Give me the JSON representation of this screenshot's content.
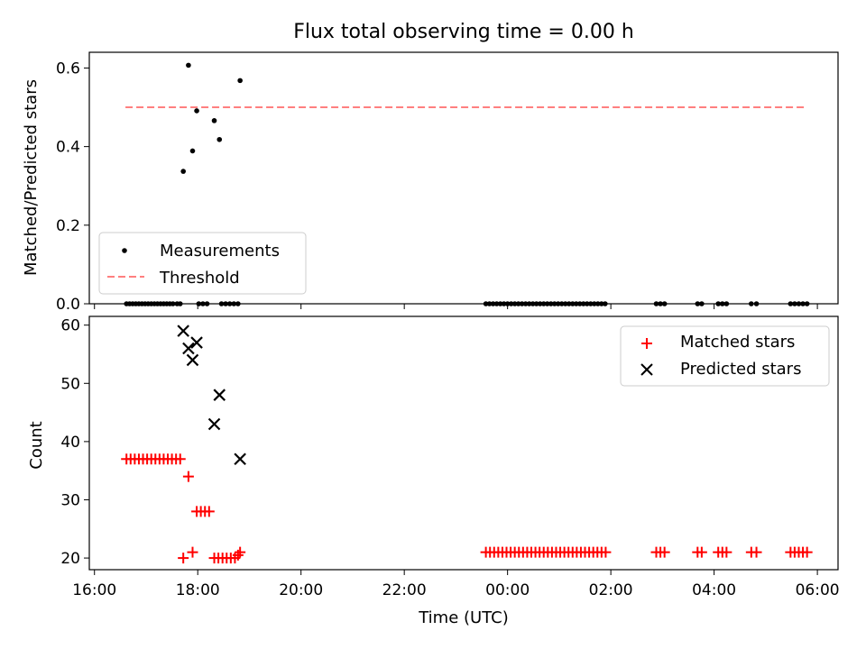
{
  "figure_title": "Flux total observing time = 0.00 h",
  "chart_data": [
    {
      "type": "scatter",
      "ylabel": "Matched/Predicted stars",
      "xlabel": "",
      "x_axis": "time (hours; values > 24 are after midnight UTC)",
      "xlim": [
        15.9,
        30.4
      ],
      "ylim": [
        0.0,
        0.64
      ],
      "yticks": [
        0.0,
        0.2,
        0.4,
        0.6
      ],
      "ytick_labels": [
        "0.0",
        "0.2",
        "0.4",
        "0.6"
      ],
      "grid": false,
      "legend_position": "lower-left",
      "series": [
        {
          "name": "Measurements",
          "marker": "dot",
          "color": "#000000",
          "points": [
            [
              17.72,
              0.337
            ],
            [
              17.82,
              0.607
            ],
            [
              17.9,
              0.389
            ],
            [
              17.98,
              0.491
            ],
            [
              18.32,
              0.466
            ],
            [
              18.42,
              0.418
            ],
            [
              18.82,
              0.568
            ],
            [
              16.62,
              0.0
            ],
            [
              16.68,
              0.0
            ],
            [
              16.74,
              0.0
            ],
            [
              16.8,
              0.0
            ],
            [
              16.86,
              0.0
            ],
            [
              16.92,
              0.0
            ],
            [
              16.98,
              0.0
            ],
            [
              17.04,
              0.0
            ],
            [
              17.1,
              0.0
            ],
            [
              17.16,
              0.0
            ],
            [
              17.22,
              0.0
            ],
            [
              17.28,
              0.0
            ],
            [
              17.34,
              0.0
            ],
            [
              17.4,
              0.0
            ],
            [
              17.46,
              0.0
            ],
            [
              17.52,
              0.0
            ],
            [
              17.6,
              0.0
            ],
            [
              17.66,
              0.0
            ],
            [
              18.02,
              0.0
            ],
            [
              18.1,
              0.0
            ],
            [
              18.18,
              0.0
            ],
            [
              18.46,
              0.0
            ],
            [
              18.54,
              0.0
            ],
            [
              18.62,
              0.0
            ],
            [
              18.7,
              0.0
            ],
            [
              18.78,
              0.0
            ],
            [
              23.58,
              0.0
            ],
            [
              23.65,
              0.0
            ],
            [
              23.72,
              0.0
            ],
            [
              23.79,
              0.0
            ],
            [
              23.86,
              0.0
            ],
            [
              23.93,
              0.0
            ],
            [
              24.0,
              0.0
            ],
            [
              24.07,
              0.0
            ],
            [
              24.14,
              0.0
            ],
            [
              24.21,
              0.0
            ],
            [
              24.28,
              0.0
            ],
            [
              24.35,
              0.0
            ],
            [
              24.42,
              0.0
            ],
            [
              24.49,
              0.0
            ],
            [
              24.56,
              0.0
            ],
            [
              24.63,
              0.0
            ],
            [
              24.7,
              0.0
            ],
            [
              24.77,
              0.0
            ],
            [
              24.84,
              0.0
            ],
            [
              24.91,
              0.0
            ],
            [
              24.98,
              0.0
            ],
            [
              25.05,
              0.0
            ],
            [
              25.12,
              0.0
            ],
            [
              25.19,
              0.0
            ],
            [
              25.26,
              0.0
            ],
            [
              25.33,
              0.0
            ],
            [
              25.4,
              0.0
            ],
            [
              25.47,
              0.0
            ],
            [
              25.54,
              0.0
            ],
            [
              25.61,
              0.0
            ],
            [
              25.68,
              0.0
            ],
            [
              25.75,
              0.0
            ],
            [
              25.82,
              0.0
            ],
            [
              25.89,
              0.0
            ],
            [
              26.88,
              0.0
            ],
            [
              26.96,
              0.0
            ],
            [
              27.04,
              0.0
            ],
            [
              27.68,
              0.0
            ],
            [
              27.76,
              0.0
            ],
            [
              28.08,
              0.0
            ],
            [
              28.16,
              0.0
            ],
            [
              28.24,
              0.0
            ],
            [
              28.72,
              0.0
            ],
            [
              28.82,
              0.0
            ],
            [
              29.48,
              0.0
            ],
            [
              29.56,
              0.0
            ],
            [
              29.64,
              0.0
            ],
            [
              29.72,
              0.0
            ],
            [
              29.8,
              0.0
            ]
          ]
        },
        {
          "name": "Threshold",
          "marker": "dashed-line",
          "color": "#ff7f7f",
          "points": [
            [
              16.6,
              0.5
            ],
            [
              29.8,
              0.5
            ]
          ]
        }
      ]
    },
    {
      "type": "scatter",
      "ylabel": "Count",
      "xlabel": "Time (UTC)",
      "xlim": [
        15.9,
        30.4
      ],
      "ylim": [
        18.0,
        61.5
      ],
      "yticks": [
        20,
        30,
        40,
        50,
        60
      ],
      "ytick_labels": [
        "20",
        "30",
        "40",
        "50",
        "60"
      ],
      "xticks": [
        16,
        18,
        20,
        22,
        24,
        26,
        28,
        30
      ],
      "xtick_labels": [
        "16:00",
        "18:00",
        "20:00",
        "22:00",
        "00:00",
        "02:00",
        "04:00",
        "06:00"
      ],
      "grid": false,
      "legend_position": "upper-right",
      "series": [
        {
          "name": "Matched stars",
          "marker": "plus",
          "color": "#ff0000",
          "points": [
            [
              16.62,
              37
            ],
            [
              16.7,
              37
            ],
            [
              16.78,
              37
            ],
            [
              16.86,
              37
            ],
            [
              16.94,
              37
            ],
            [
              17.02,
              37
            ],
            [
              17.1,
              37
            ],
            [
              17.18,
              37
            ],
            [
              17.26,
              37
            ],
            [
              17.34,
              37
            ],
            [
              17.42,
              37
            ],
            [
              17.5,
              37
            ],
            [
              17.58,
              37
            ],
            [
              17.66,
              37
            ],
            [
              17.72,
              20
            ],
            [
              17.82,
              34
            ],
            [
              17.9,
              21
            ],
            [
              17.98,
              28
            ],
            [
              18.06,
              28
            ],
            [
              18.14,
              28
            ],
            [
              18.22,
              28
            ],
            [
              18.32,
              20
            ],
            [
              18.4,
              20
            ],
            [
              18.48,
              20
            ],
            [
              18.56,
              20
            ],
            [
              18.64,
              20
            ],
            [
              18.72,
              20
            ],
            [
              18.78,
              20.5
            ],
            [
              18.82,
              21
            ],
            [
              23.58,
              21
            ],
            [
              23.66,
              21
            ],
            [
              23.74,
              21
            ],
            [
              23.82,
              21
            ],
            [
              23.9,
              21
            ],
            [
              23.98,
              21
            ],
            [
              24.06,
              21
            ],
            [
              24.14,
              21
            ],
            [
              24.22,
              21
            ],
            [
              24.3,
              21
            ],
            [
              24.38,
              21
            ],
            [
              24.46,
              21
            ],
            [
              24.54,
              21
            ],
            [
              24.62,
              21
            ],
            [
              24.7,
              21
            ],
            [
              24.78,
              21
            ],
            [
              24.86,
              21
            ],
            [
              24.94,
              21
            ],
            [
              25.02,
              21
            ],
            [
              25.1,
              21
            ],
            [
              25.18,
              21
            ],
            [
              25.26,
              21
            ],
            [
              25.34,
              21
            ],
            [
              25.42,
              21
            ],
            [
              25.5,
              21
            ],
            [
              25.58,
              21
            ],
            [
              25.66,
              21
            ],
            [
              25.74,
              21
            ],
            [
              25.82,
              21
            ],
            [
              25.9,
              21
            ],
            [
              26.88,
              21
            ],
            [
              26.96,
              21
            ],
            [
              27.04,
              21
            ],
            [
              27.68,
              21
            ],
            [
              27.76,
              21
            ],
            [
              28.08,
              21
            ],
            [
              28.16,
              21
            ],
            [
              28.24,
              21
            ],
            [
              28.72,
              21
            ],
            [
              28.82,
              21
            ],
            [
              29.48,
              21
            ],
            [
              29.56,
              21
            ],
            [
              29.64,
              21
            ],
            [
              29.72,
              21
            ],
            [
              29.8,
              21
            ]
          ]
        },
        {
          "name": "Predicted stars",
          "marker": "x",
          "color": "#000000",
          "points": [
            [
              17.72,
              59
            ],
            [
              17.82,
              56
            ],
            [
              17.9,
              54
            ],
            [
              17.98,
              57
            ],
            [
              18.32,
              43
            ],
            [
              18.42,
              48
            ],
            [
              18.82,
              37
            ]
          ]
        }
      ]
    }
  ]
}
